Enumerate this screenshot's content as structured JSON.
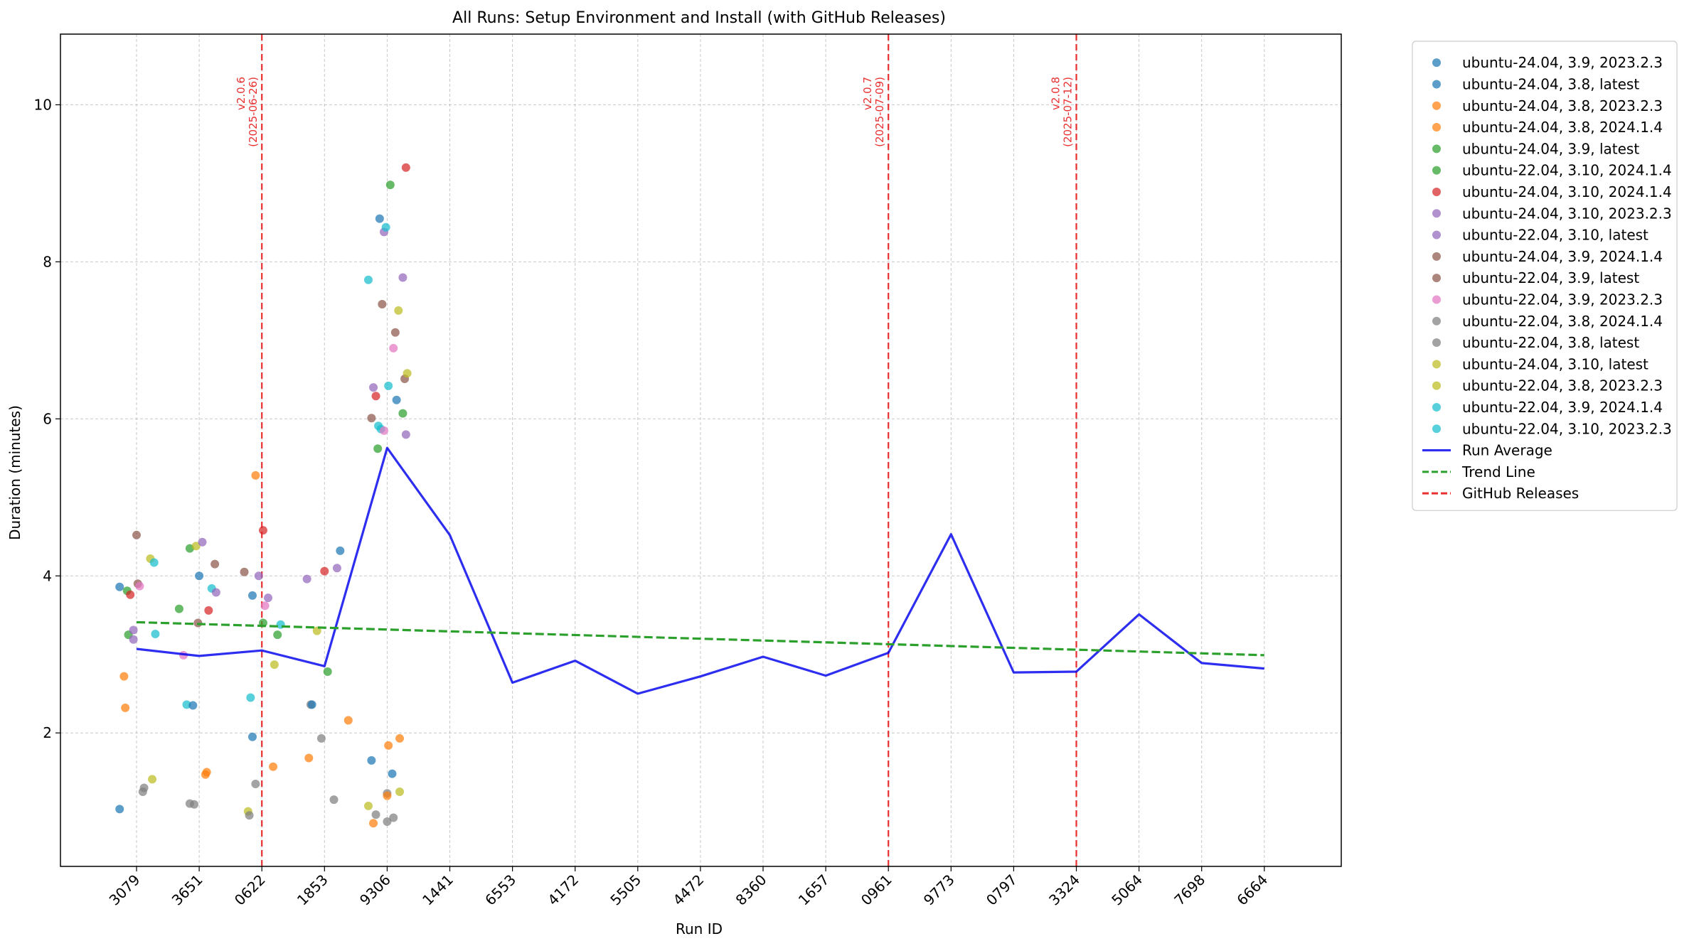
{
  "chart_data": {
    "type": "scatter",
    "title": "All Runs: Setup Environment and Install (with GitHub Releases)",
    "xlabel": "Run ID",
    "ylabel": "Duration (minutes)",
    "ylim": [
      0.3,
      10.9
    ],
    "yticks": [
      2,
      4,
      6,
      8,
      10
    ],
    "grid": true,
    "legend_placement": "outside-right",
    "categories": [
      "3079",
      "3651",
      "0622",
      "1853",
      "9306",
      "1441",
      "6553",
      "4172",
      "5505",
      "4472",
      "8360",
      "1657",
      "0961",
      "9773",
      "0797",
      "3324",
      "5064",
      "7698",
      "6664"
    ],
    "legend_entries": [
      {
        "name": "ubuntu-24.04, 3.9, 2023.2.3",
        "color": "#1f77b4"
      },
      {
        "name": "ubuntu-24.04, 3.8, latest",
        "color": "#1f77b4"
      },
      {
        "name": "ubuntu-24.04, 3.8, 2023.2.3",
        "color": "#ff7f0e"
      },
      {
        "name": "ubuntu-24.04, 3.8, 2024.1.4",
        "color": "#ff7f0e"
      },
      {
        "name": "ubuntu-24.04, 3.9, latest",
        "color": "#2ca02c"
      },
      {
        "name": "ubuntu-22.04, 3.10, 2024.1.4",
        "color": "#2ca02c"
      },
      {
        "name": "ubuntu-24.04, 3.10, 2024.1.4",
        "color": "#d62728"
      },
      {
        "name": "ubuntu-24.04, 3.10, 2023.2.3",
        "color": "#9467bd"
      },
      {
        "name": "ubuntu-22.04, 3.10, latest",
        "color": "#9467bd"
      },
      {
        "name": "ubuntu-24.04, 3.9, 2024.1.4",
        "color": "#8c564b"
      },
      {
        "name": "ubuntu-22.04, 3.9, latest",
        "color": "#8c564b"
      },
      {
        "name": "ubuntu-22.04, 3.9, 2023.2.3",
        "color": "#e377c2"
      },
      {
        "name": "ubuntu-22.04, 3.8, 2024.1.4",
        "color": "#7f7f7f"
      },
      {
        "name": "ubuntu-22.04, 3.8, latest",
        "color": "#7f7f7f"
      },
      {
        "name": "ubuntu-24.04, 3.10, latest",
        "color": "#bcbd22"
      },
      {
        "name": "ubuntu-22.04, 3.8, 2023.2.3",
        "color": "#bcbd22"
      },
      {
        "name": "ubuntu-22.04, 3.9, 2024.1.4",
        "color": "#17becf"
      },
      {
        "name": "ubuntu-22.04, 3.10, 2023.2.3",
        "color": "#17becf"
      },
      {
        "name": "Run Average",
        "color": "#0000ee",
        "style": "line"
      },
      {
        "name": "Trend Line",
        "color": "#2ca02c",
        "style": "dashed"
      },
      {
        "name": "GitHub Releases",
        "color": "#e83030",
        "style": "dashed"
      }
    ],
    "run_average": [
      3.07,
      2.98,
      3.05,
      2.85,
      5.63,
      4.52,
      2.64,
      2.92,
      2.5,
      2.72,
      2.97,
      2.73,
      3.02,
      4.53,
      2.77,
      2.78,
      3.51,
      2.89,
      2.82
    ],
    "trend_line": {
      "start": 3.41,
      "end": 2.99
    },
    "releases": [
      {
        "position": 2,
        "version": "v2.0.6",
        "date": "(2025-06-26)"
      },
      {
        "position": 12,
        "version": "v2.0.7",
        "date": "(2025-07-09)"
      },
      {
        "position": 15,
        "version": "v2.0.8",
        "date": "(2025-07-12)"
      }
    ],
    "points": [
      [
        -0.27,
        1.03,
        0
      ],
      [
        -0.27,
        3.86,
        1
      ],
      [
        -0.2,
        2.72,
        2
      ],
      [
        -0.18,
        2.32,
        3
      ],
      [
        -0.15,
        3.81,
        4
      ],
      [
        -0.13,
        3.25,
        5
      ],
      [
        -0.1,
        3.76,
        6
      ],
      [
        -0.05,
        3.31,
        7
      ],
      [
        -0.05,
        3.19,
        8
      ],
      [
        0.0,
        4.52,
        9
      ],
      [
        0.02,
        3.9,
        10
      ],
      [
        0.05,
        3.87,
        11
      ],
      [
        0.1,
        1.25,
        12
      ],
      [
        0.12,
        1.3,
        13
      ],
      [
        0.22,
        4.22,
        14
      ],
      [
        0.25,
        1.41,
        15
      ],
      [
        0.28,
        4.17,
        16
      ],
      [
        0.3,
        3.26,
        17
      ],
      [
        0.68,
        3.58,
        5
      ],
      [
        0.75,
        2.99,
        11
      ],
      [
        0.8,
        2.36,
        16
      ],
      [
        0.85,
        4.35,
        4
      ],
      [
        0.85,
        1.1,
        12
      ],
      [
        0.9,
        2.35,
        0
      ],
      [
        0.92,
        1.09,
        13
      ],
      [
        0.95,
        4.38,
        14
      ],
      [
        0.98,
        3.4,
        9
      ],
      [
        1.0,
        4.0,
        1
      ],
      [
        1.05,
        4.43,
        7
      ],
      [
        1.1,
        1.47,
        2
      ],
      [
        1.12,
        1.5,
        3
      ],
      [
        1.15,
        3.56,
        6
      ],
      [
        1.2,
        3.84,
        17
      ],
      [
        1.25,
        4.15,
        10
      ],
      [
        1.27,
        3.79,
        8
      ],
      [
        1.72,
        4.05,
        9
      ],
      [
        1.78,
        1.0,
        15
      ],
      [
        1.8,
        0.95,
        13
      ],
      [
        1.82,
        2.45,
        17
      ],
      [
        1.85,
        3.75,
        1
      ],
      [
        1.85,
        1.95,
        0
      ],
      [
        1.9,
        5.28,
        2
      ],
      [
        1.9,
        1.35,
        12
      ],
      [
        1.95,
        4.0,
        7
      ],
      [
        2.02,
        4.58,
        6
      ],
      [
        2.02,
        3.4,
        4
      ],
      [
        2.05,
        3.62,
        11
      ],
      [
        2.1,
        3.72,
        8
      ],
      [
        2.18,
        1.57,
        3
      ],
      [
        2.2,
        2.87,
        14
      ],
      [
        2.25,
        3.25,
        5
      ],
      [
        2.3,
        3.38,
        16
      ],
      [
        2.72,
        3.96,
        7
      ],
      [
        2.75,
        1.68,
        3
      ],
      [
        2.78,
        2.36,
        12
      ],
      [
        2.8,
        2.36,
        0
      ],
      [
        2.88,
        3.3,
        15
      ],
      [
        2.95,
        1.93,
        13
      ],
      [
        3.0,
        4.06,
        6
      ],
      [
        3.05,
        2.78,
        4
      ],
      [
        3.15,
        1.15,
        12
      ],
      [
        3.2,
        4.1,
        8
      ],
      [
        3.25,
        4.32,
        1
      ],
      [
        3.38,
        2.16,
        2
      ],
      [
        3.7,
        7.77,
        16
      ],
      [
        3.75,
        1.65,
        1
      ],
      [
        3.78,
        0.85,
        3
      ],
      [
        3.82,
        0.96,
        13
      ],
      [
        3.85,
        5.62,
        4
      ],
      [
        3.88,
        8.55,
        0
      ],
      [
        3.92,
        7.46,
        10
      ],
      [
        3.95,
        8.38,
        7
      ],
      [
        3.98,
        8.44,
        17
      ],
      [
        4.0,
        1.23,
        12
      ],
      [
        4.02,
        1.84,
        2
      ],
      [
        4.05,
        8.98,
        5
      ],
      [
        4.1,
        6.9,
        11
      ],
      [
        4.13,
        7.1,
        9
      ],
      [
        4.18,
        7.38,
        14
      ],
      [
        4.2,
        1.25,
        15
      ],
      [
        4.25,
        7.8,
        8
      ],
      [
        4.3,
        9.2,
        6
      ],
      [
        3.7,
        1.07,
        15
      ],
      [
        3.75,
        6.01,
        9
      ],
      [
        3.78,
        6.4,
        7
      ],
      [
        3.82,
        6.29,
        6
      ],
      [
        3.86,
        5.91,
        16
      ],
      [
        3.9,
        5.87,
        17
      ],
      [
        3.95,
        5.85,
        11
      ],
      [
        4.0,
        0.87,
        12
      ],
      [
        4.0,
        1.2,
        2
      ],
      [
        4.02,
        6.42,
        16
      ],
      [
        4.08,
        1.48,
        0
      ],
      [
        4.1,
        0.92,
        13
      ],
      [
        4.15,
        6.24,
        1
      ],
      [
        4.2,
        1.93,
        3
      ],
      [
        4.25,
        6.07,
        4
      ],
      [
        4.28,
        6.51,
        9
      ],
      [
        4.3,
        5.8,
        7
      ],
      [
        4.32,
        6.58,
        14
      ]
    ]
  }
}
